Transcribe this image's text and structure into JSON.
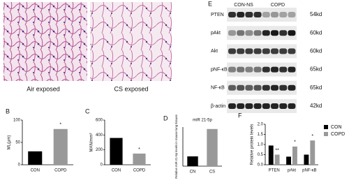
{
  "figure_a": {
    "panel": "A",
    "images": [
      {
        "caption": "Air exposed"
      },
      {
        "caption": "CS exposed"
      }
    ]
  },
  "blot": {
    "panel": "E",
    "groups": [
      "CON-NS",
      "COPD"
    ],
    "rows": [
      {
        "protein": "PTEN",
        "size": "54kd"
      },
      {
        "protein": "pAkt",
        "size": "60kd"
      },
      {
        "protein": "Akt",
        "size": "60kd"
      },
      {
        "protein": "pNF-κB",
        "size": "65kd"
      },
      {
        "protein": "NF-κB",
        "size": "65kd"
      },
      {
        "protein": "β-actin",
        "size": "42kd"
      }
    ]
  },
  "chart_data": [
    {
      "type": "bar",
      "panel": "B",
      "ylabel": "ML(μm)",
      "categories": [
        "CON",
        "COPD"
      ],
      "values": [
        30,
        80
      ],
      "colors": [
        "#000000",
        "#999999"
      ],
      "ylim": [
        0,
        100
      ],
      "yticks": [
        0,
        50,
        100
      ],
      "annotations": [
        {
          "category": "COPD",
          "text": "*"
        }
      ]
    },
    {
      "type": "bar",
      "panel": "C",
      "ylabel": "MAN/mm²",
      "categories": [
        "CON",
        "COPD"
      ],
      "values": [
        360,
        150
      ],
      "colors": [
        "#000000",
        "#999999"
      ],
      "ylim": [
        0,
        600
      ],
      "yticks": [
        0,
        200,
        400,
        600
      ],
      "annotations": [
        {
          "category": "COPD",
          "text": "*"
        }
      ]
    },
    {
      "type": "bar",
      "panel": "D",
      "title": "miR 21-5p",
      "ylabel": "Relative miR-21-5p levels in mouse lung tissues",
      "categories": [
        "CN",
        "CS"
      ],
      "values": [
        1,
        3.8
      ],
      "colors": [
        "#000000",
        "#999999"
      ],
      "ylim": [
        0,
        4
      ]
    },
    {
      "type": "bar",
      "panel": "F",
      "ylabel": "Relative protein levels",
      "categories": [
        "PTEN",
        "pAkt",
        "pNF-κB"
      ],
      "series": [
        {
          "name": "CON",
          "color": "#000000",
          "values": [
            0.95,
            0.4,
            0.5
          ]
        },
        {
          "name": "COPD",
          "color": "#999999",
          "values": [
            0.5,
            0.9,
            1.2
          ]
        }
      ],
      "ylim": [
        0,
        2
      ],
      "yticks": [
        {
          "value": 0,
          "label": "0.0"
        },
        {
          "value": 0.5,
          "label": "0.5"
        },
        {
          "value": 1,
          "label": "1.0"
        },
        {
          "value": 1.5,
          "label": "1.5"
        },
        {
          "value": 2,
          "label": "2.0"
        }
      ],
      "annotations": [
        {
          "category": "PTEN",
          "text": "**"
        },
        {
          "category": "pAkt",
          "text": "*"
        },
        {
          "category": "pNF-κB",
          "text": "*"
        }
      ],
      "legend": "right"
    }
  ]
}
